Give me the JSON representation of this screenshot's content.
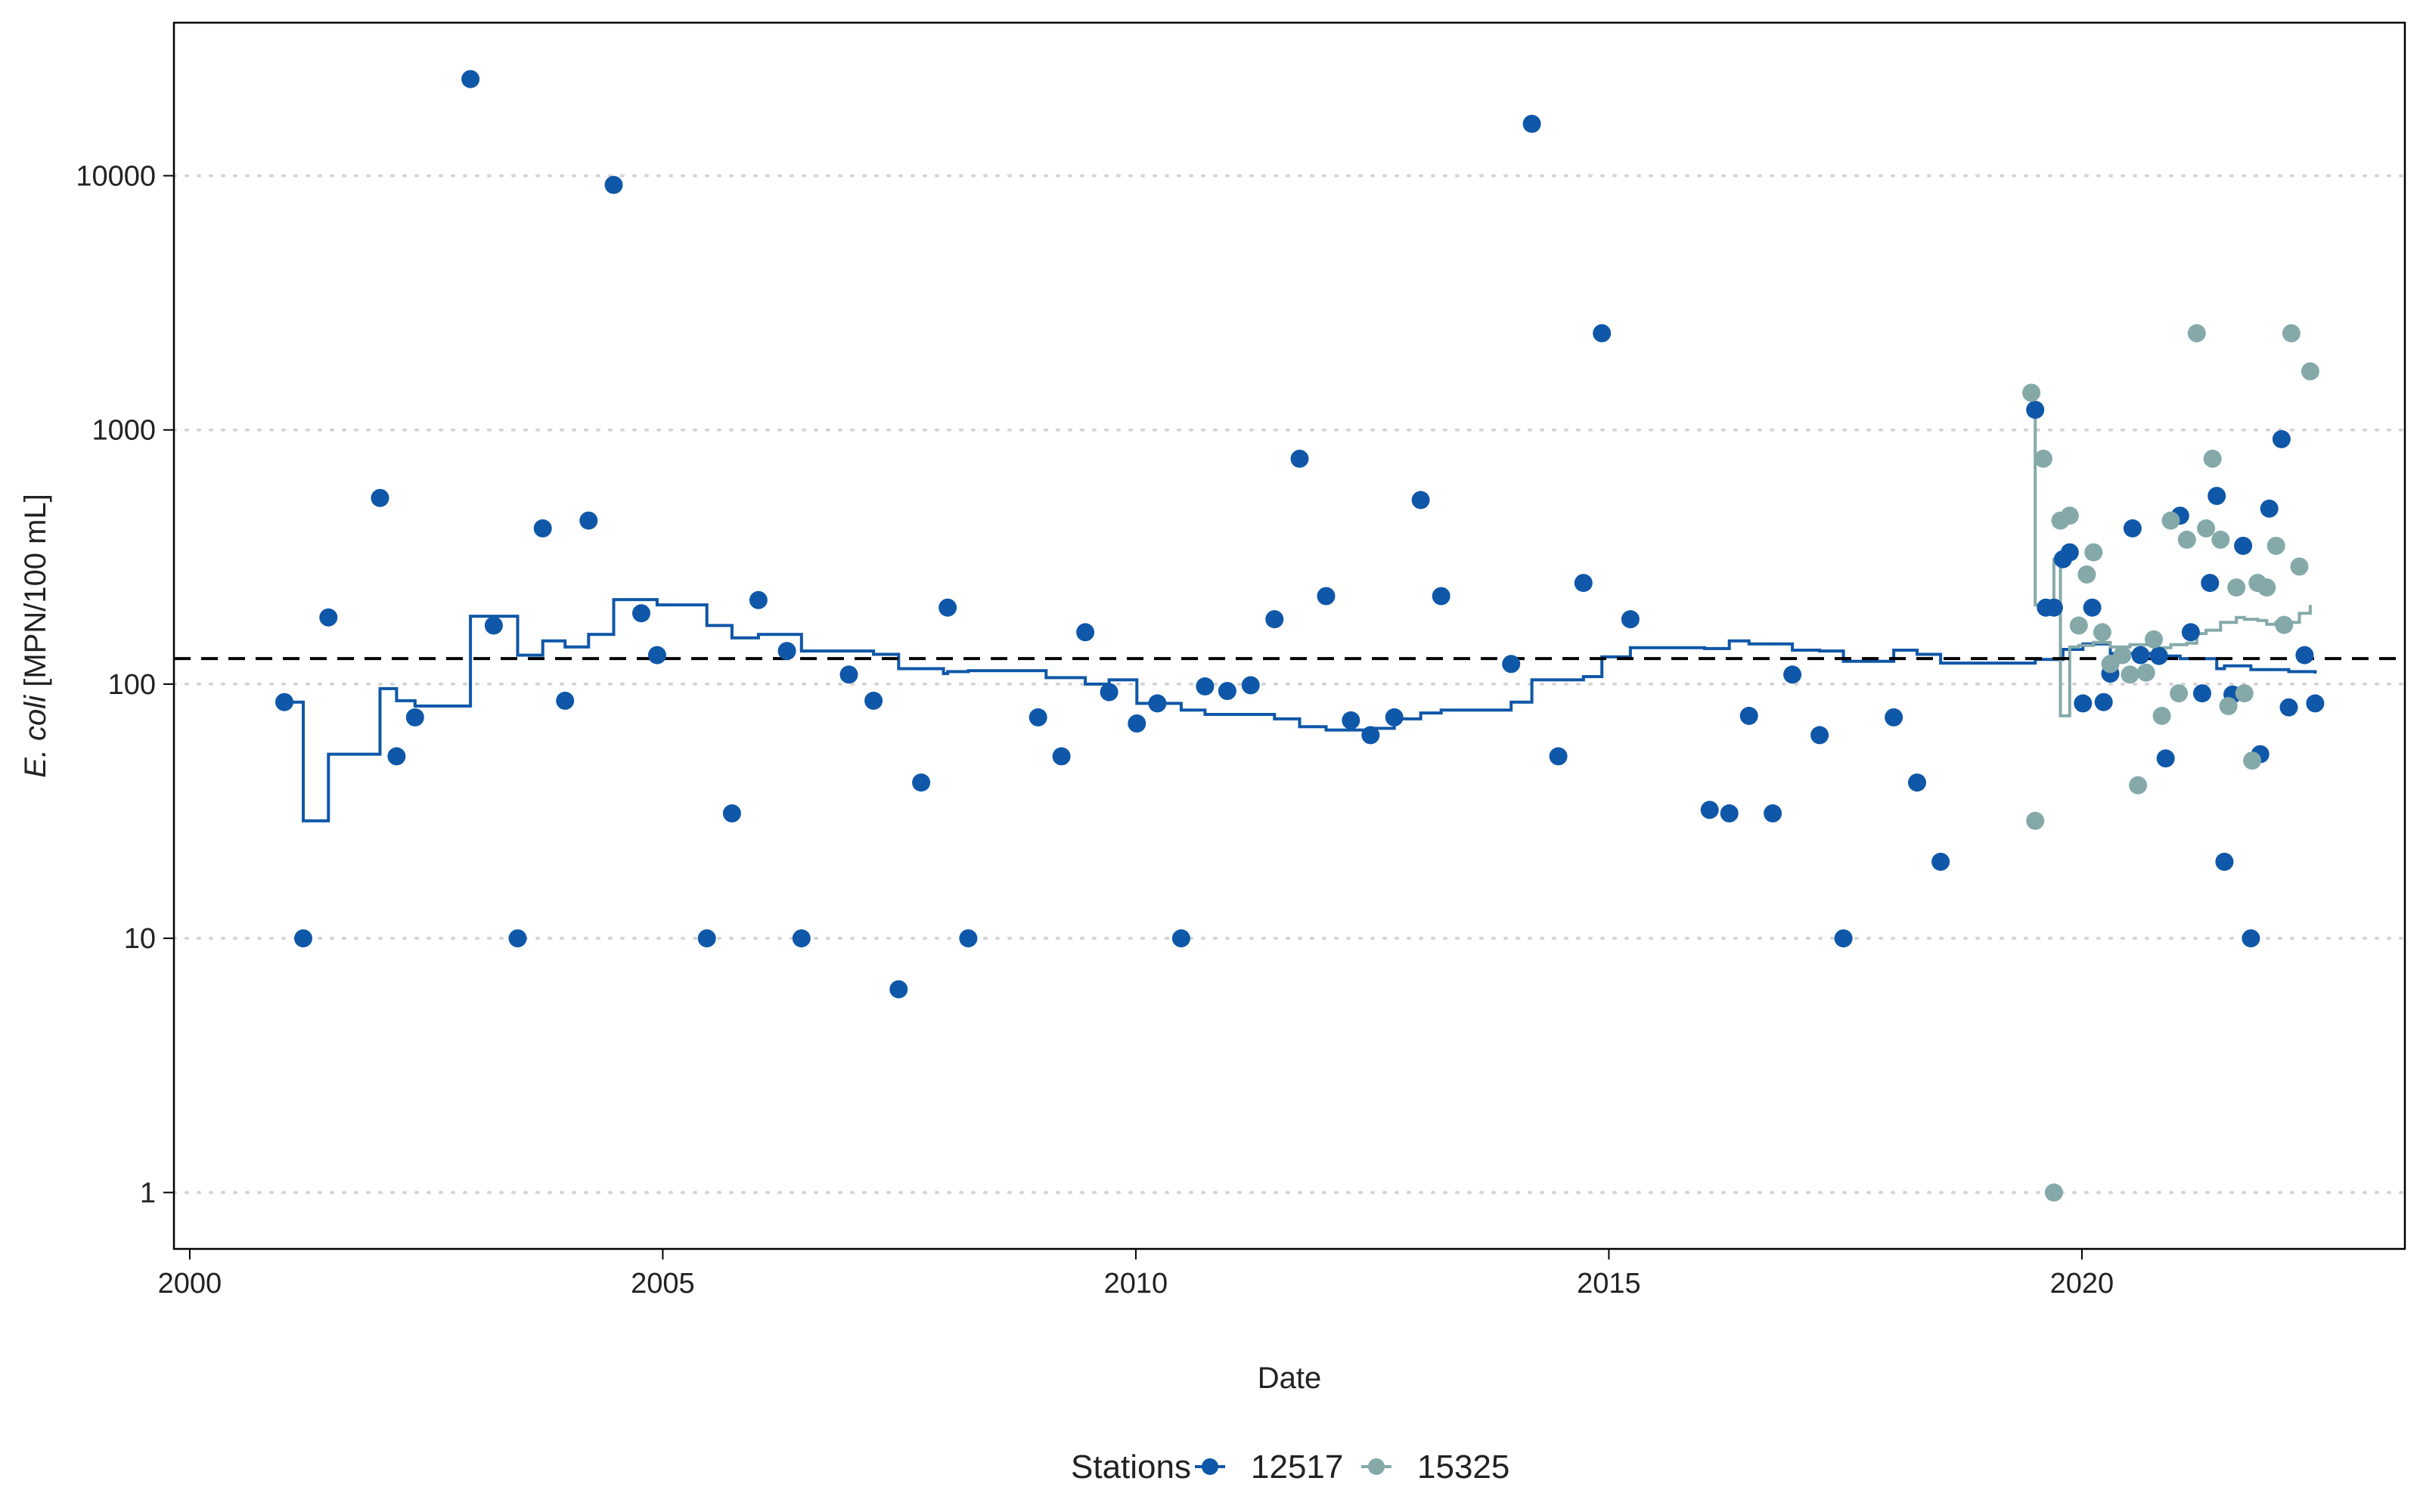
{
  "chart_data": {
    "type": "scatter",
    "xlabel": "Date",
    "ylabel_italic": "E. coli",
    "ylabel_rest": " [MPN/100 mL]",
    "x_ticks": [
      "2000",
      "2005",
      "2010",
      "2015",
      "2020"
    ],
    "y_ticks": [
      "1",
      "10",
      "100",
      "1000",
      "10000"
    ],
    "y_scale": "log10",
    "xlim": [
      "1999-11-01",
      "2023-06-01"
    ],
    "ylim": [
      0.6,
      40000
    ],
    "grid": "horizontal dotted at y ticks",
    "reference_line": {
      "y": 126,
      "style": "dashed",
      "color": "#000000"
    },
    "legend": {
      "title": "Stations",
      "position": "bottom"
    },
    "series": [
      {
        "name": "12517",
        "color": "#0F57A8",
        "points": [
          [
            "2001-01-01",
            85
          ],
          [
            "2001-03-15",
            10
          ],
          [
            "2001-06-20",
            183
          ],
          [
            "2002-01-05",
            540
          ],
          [
            "2002-03-10",
            52
          ],
          [
            "2002-05-20",
            74
          ],
          [
            "2002-12-20",
            24000
          ],
          [
            "2003-03-20",
            170
          ],
          [
            "2003-06-20",
            10
          ],
          [
            "2003-09-25",
            410
          ],
          [
            "2003-12-20",
            86
          ],
          [
            "2004-03-20",
            440
          ],
          [
            "2004-06-25",
            9200
          ],
          [
            "2004-10-10",
            190
          ],
          [
            "2004-12-10",
            130
          ],
          [
            "2005-06-20",
            10
          ],
          [
            "2005-09-25",
            31
          ],
          [
            "2006-01-05",
            214
          ],
          [
            "2006-04-25",
            135
          ],
          [
            "2006-06-20",
            10
          ],
          [
            "2006-12-20",
            109
          ],
          [
            "2007-03-25",
            86
          ],
          [
            "2007-06-30",
            6.3
          ],
          [
            "2007-09-25",
            41
          ],
          [
            "2008-01-05",
            200
          ],
          [
            "2008-03-25",
            10
          ],
          [
            "2008-12-20",
            74
          ],
          [
            "2009-03-20",
            52
          ],
          [
            "2009-06-20",
            160
          ],
          [
            "2009-09-20",
            93
          ],
          [
            "2010-01-05",
            70
          ],
          [
            "2010-03-25",
            84
          ],
          [
            "2010-06-25",
            10
          ],
          [
            "2010-09-25",
            98
          ],
          [
            "2010-12-20",
            94
          ],
          [
            "2011-03-20",
            99
          ],
          [
            "2011-06-20",
            180
          ],
          [
            "2011-09-25",
            770
          ],
          [
            "2012-01-05",
            222
          ],
          [
            "2012-04-10",
            72
          ],
          [
            "2012-06-25",
            63
          ],
          [
            "2012-09-25",
            74
          ],
          [
            "2013-01-05",
            530
          ],
          [
            "2013-03-25",
            222
          ],
          [
            "2013-12-20",
            120
          ],
          [
            "2014-03-10",
            16000
          ],
          [
            "2014-06-20",
            52
          ],
          [
            "2014-09-25",
            250
          ],
          [
            "2014-12-05",
            2400
          ],
          [
            "2015-03-25",
            180
          ],
          [
            "2016-01-25",
            32
          ],
          [
            "2016-04-10",
            31
          ],
          [
            "2016-06-25",
            75
          ],
          [
            "2016-09-25",
            31
          ],
          [
            "2016-12-10",
            109
          ],
          [
            "2017-03-25",
            63
          ],
          [
            "2017-06-25",
            10
          ],
          [
            "2018-01-05",
            74
          ],
          [
            "2018-04-05",
            41
          ],
          [
            "2018-07-05",
            20
          ],
          [
            "2019-07-05",
            1200
          ],
          [
            "2019-08-15",
            200
          ],
          [
            "2019-09-15",
            200
          ],
          [
            "2019-10-20",
            310
          ],
          [
            "2019-11-15",
            330
          ],
          [
            "2020-01-05",
            84
          ],
          [
            "2020-02-10",
            200
          ],
          [
            "2020-03-25",
            85
          ],
          [
            "2020-04-20",
            110
          ],
          [
            "2020-07-15",
            410
          ],
          [
            "2020-08-15",
            130
          ],
          [
            "2020-10-25",
            129
          ],
          [
            "2020-11-20",
            51
          ],
          [
            "2021-01-15",
            460
          ],
          [
            "2021-02-25",
            160
          ],
          [
            "2021-04-10",
            92
          ],
          [
            "2021-05-10",
            250
          ],
          [
            "2021-06-05",
            550
          ],
          [
            "2021-07-05",
            20
          ],
          [
            "2021-08-05",
            91
          ],
          [
            "2021-09-15",
            350
          ],
          [
            "2021-10-15",
            10
          ],
          [
            "2021-11-20",
            53
          ],
          [
            "2021-12-25",
            490
          ],
          [
            "2022-02-10",
            920
          ],
          [
            "2022-03-10",
            81
          ],
          [
            "2022-05-10",
            130
          ],
          [
            "2022-06-20",
            84
          ]
        ],
        "step_mean": [
          [
            "2001-01-01",
            85
          ],
          [
            "2001-03-15",
            29
          ],
          [
            "2001-06-20",
            53
          ],
          [
            "2002-01-05",
            96
          ],
          [
            "2002-03-10",
            86
          ],
          [
            "2002-05-20",
            82
          ],
          [
            "2002-12-20",
            185
          ],
          [
            "2003-06-20",
            130
          ],
          [
            "2003-09-25",
            148
          ],
          [
            "2003-12-20",
            140
          ],
          [
            "2004-03-20",
            157
          ],
          [
            "2004-06-25",
            215
          ],
          [
            "2004-12-10",
            205
          ],
          [
            "2005-06-20",
            170
          ],
          [
            "2005-09-25",
            152
          ],
          [
            "2006-01-05",
            157
          ],
          [
            "2006-06-20",
            135
          ],
          [
            "2007-03-25",
            131
          ],
          [
            "2007-06-30",
            115
          ],
          [
            "2007-12-20",
            110
          ],
          [
            "2008-01-05",
            112
          ],
          [
            "2008-03-25",
            113
          ],
          [
            "2009-01-20",
            106
          ],
          [
            "2009-06-20",
            100
          ],
          [
            "2009-09-20",
            104
          ],
          [
            "2010-01-05",
            84
          ],
          [
            "2010-06-25",
            79
          ],
          [
            "2010-09-25",
            76
          ],
          [
            "2011-06-20",
            73
          ],
          [
            "2011-09-25",
            68
          ],
          [
            "2012-01-05",
            66
          ],
          [
            "2012-06-25",
            67
          ],
          [
            "2012-09-25",
            73
          ],
          [
            "2013-01-05",
            77
          ],
          [
            "2013-03-25",
            79
          ],
          [
            "2013-12-20",
            85
          ],
          [
            "2014-03-10",
            104
          ],
          [
            "2014-09-25",
            107
          ],
          [
            "2014-12-05",
            128
          ],
          [
            "2015-03-25",
            139
          ],
          [
            "2016-01-05",
            138
          ],
          [
            "2016-04-10",
            148
          ],
          [
            "2016-06-25",
            144
          ],
          [
            "2016-12-10",
            136
          ],
          [
            "2017-03-25",
            135
          ],
          [
            "2017-06-25",
            123
          ],
          [
            "2018-01-05",
            136
          ],
          [
            "2018-04-05",
            131
          ],
          [
            "2018-07-05",
            121
          ],
          [
            "2019-07-05",
            125
          ],
          [
            "2019-10-20",
            137
          ],
          [
            "2020-01-05",
            144
          ],
          [
            "2020-04-20",
            132
          ],
          [
            "2020-10-25",
            129
          ],
          [
            "2021-01-15",
            126
          ],
          [
            "2021-06-05",
            115
          ],
          [
            "2021-07-05",
            118
          ],
          [
            "2021-10-15",
            114
          ],
          [
            "2022-03-10",
            112
          ],
          [
            "2022-06-20",
            110
          ]
        ]
      },
      {
        "name": "15325",
        "color": "#85A9A9",
        "points": [
          [
            "2019-06-20",
            1400
          ],
          [
            "2019-07-05",
            29
          ],
          [
            "2019-08-05",
            770
          ],
          [
            "2019-09-15",
            1
          ],
          [
            "2019-10-10",
            440
          ],
          [
            "2019-11-15",
            460
          ],
          [
            "2019-12-20",
            170
          ],
          [
            "2020-01-20",
            270
          ],
          [
            "2020-02-15",
            330
          ],
          [
            "2020-03-20",
            160
          ],
          [
            "2020-04-20",
            120
          ],
          [
            "2020-06-05",
            130
          ],
          [
            "2020-07-05",
            109
          ],
          [
            "2020-08-05",
            40
          ],
          [
            "2020-09-05",
            111
          ],
          [
            "2020-10-05",
            150
          ],
          [
            "2020-11-05",
            75
          ],
          [
            "2020-12-10",
            440
          ],
          [
            "2021-01-10",
            92
          ],
          [
            "2021-02-10",
            370
          ],
          [
            "2021-03-20",
            2400
          ],
          [
            "2021-04-25",
            410
          ],
          [
            "2021-05-20",
            770
          ],
          [
            "2021-06-20",
            370
          ],
          [
            "2021-07-20",
            82
          ],
          [
            "2021-08-20",
            240
          ],
          [
            "2021-09-20",
            92
          ],
          [
            "2021-10-20",
            50
          ],
          [
            "2021-11-10",
            250
          ],
          [
            "2021-12-15",
            240
          ],
          [
            "2022-01-20",
            350
          ],
          [
            "2022-02-20",
            171
          ],
          [
            "2022-03-20",
            2400
          ],
          [
            "2022-04-20",
            290
          ],
          [
            "2022-06-01",
            1700
          ]
        ],
        "step_mean": [
          [
            "2019-06-20",
            1200
          ],
          [
            "2019-07-05",
            205
          ],
          [
            "2019-09-15",
            310
          ],
          [
            "2019-10-10",
            75
          ],
          [
            "2019-11-15",
            140
          ],
          [
            "2019-12-20",
            142
          ],
          [
            "2020-02-15",
            146
          ],
          [
            "2020-04-20",
            140
          ],
          [
            "2020-07-05",
            143
          ],
          [
            "2020-10-05",
            139
          ],
          [
            "2020-12-10",
            143
          ],
          [
            "2021-02-10",
            145
          ],
          [
            "2021-03-20",
            158
          ],
          [
            "2021-04-25",
            163
          ],
          [
            "2021-06-20",
            175
          ],
          [
            "2021-08-20",
            183
          ],
          [
            "2021-09-20",
            180
          ],
          [
            "2021-11-10",
            178
          ],
          [
            "2021-12-15",
            172
          ],
          [
            "2022-01-20",
            175
          ],
          [
            "2022-04-20",
            190
          ],
          [
            "2022-06-01",
            205
          ]
        ]
      }
    ]
  }
}
